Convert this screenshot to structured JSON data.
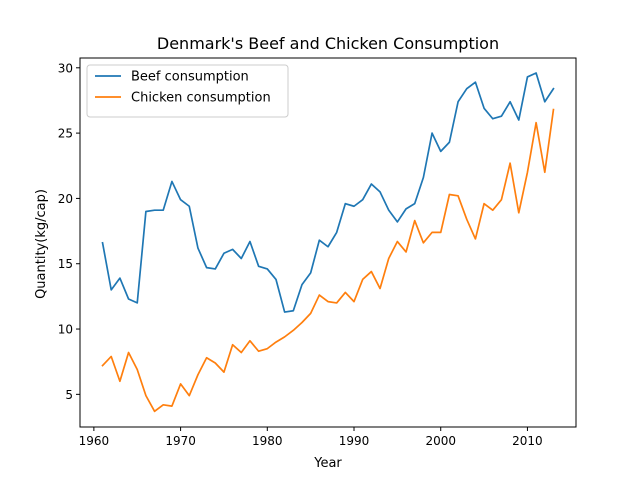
{
  "chart_data": {
    "type": "line",
    "title": "Denmark's Beef and Chicken Consumption",
    "xlabel": "Year",
    "ylabel": "Quantity(kg/cap)",
    "xlim": [
      1958.4,
      2015.6
    ],
    "ylim": [
      2.5,
      30.75
    ],
    "xticks": [
      1960,
      1970,
      1980,
      1990,
      2000,
      2010
    ],
    "yticks": [
      5,
      10,
      15,
      20,
      25,
      30
    ],
    "grid": false,
    "legend_position": "top-left",
    "x": [
      1961,
      1962,
      1963,
      1964,
      1965,
      1966,
      1967,
      1968,
      1969,
      1970,
      1971,
      1972,
      1973,
      1974,
      1975,
      1976,
      1977,
      1978,
      1979,
      1980,
      1981,
      1982,
      1983,
      1984,
      1985,
      1986,
      1987,
      1988,
      1989,
      1990,
      1991,
      1992,
      1993,
      1994,
      1995,
      1996,
      1997,
      1998,
      1999,
      2000,
      2001,
      2002,
      2003,
      2004,
      2005,
      2006,
      2007,
      2008,
      2009,
      2010,
      2011,
      2012,
      2013
    ],
    "series": [
      {
        "name": "Beef consumption",
        "color": "#1f77b4",
        "values": [
          16.6,
          13.0,
          13.9,
          12.3,
          12.0,
          19.0,
          19.1,
          19.1,
          21.3,
          19.9,
          19.4,
          16.2,
          14.7,
          14.6,
          15.8,
          16.1,
          15.4,
          16.7,
          14.8,
          14.6,
          13.8,
          11.3,
          11.4,
          13.4,
          14.3,
          16.8,
          16.3,
          17.4,
          19.6,
          19.4,
          19.9,
          21.1,
          20.5,
          19.1,
          18.2,
          19.2,
          19.6,
          21.6,
          25.0,
          23.6,
          24.3,
          27.4,
          28.4,
          28.9,
          26.9,
          26.1,
          26.3,
          27.4,
          26.0,
          29.3,
          29.6,
          27.4,
          28.4
        ]
      },
      {
        "name": "Chicken consumption",
        "color": "#ff7f0e",
        "values": [
          7.2,
          7.9,
          6.0,
          8.2,
          6.9,
          4.9,
          3.7,
          4.2,
          4.1,
          5.8,
          4.9,
          6.5,
          7.8,
          7.4,
          6.7,
          8.8,
          8.2,
          9.1,
          8.3,
          8.5,
          9.0,
          9.4,
          9.9,
          10.5,
          11.2,
          12.6,
          12.1,
          12.0,
          12.8,
          12.1,
          13.8,
          14.4,
          13.1,
          15.4,
          16.7,
          15.9,
          18.3,
          16.6,
          17.4,
          17.4,
          20.3,
          20.2,
          18.4,
          16.9,
          19.6,
          19.1,
          19.9,
          22.7,
          18.9,
          22.0,
          25.8,
          22.0,
          26.8
        ]
      }
    ]
  }
}
